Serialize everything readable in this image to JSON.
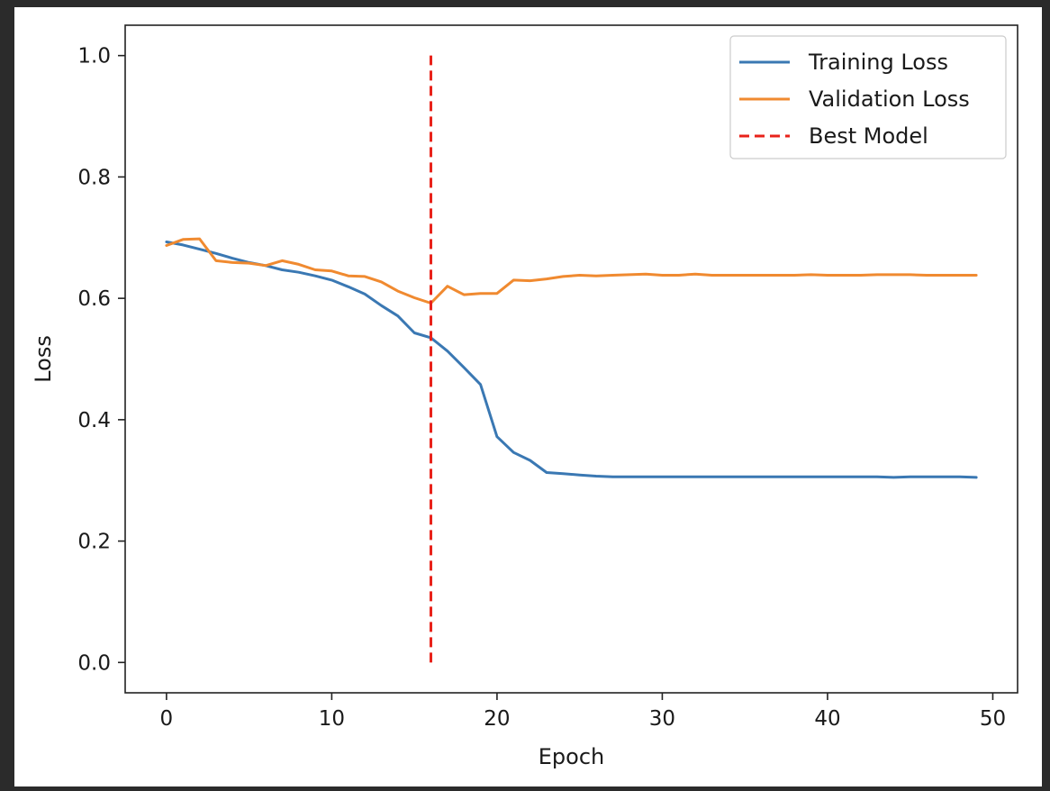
{
  "chart_data": {
    "type": "line",
    "title": "",
    "xlabel": "Epoch",
    "ylabel": "Loss",
    "xlim": [
      -2.5,
      51.5
    ],
    "ylim": [
      -0.05,
      1.05
    ],
    "xticks": [
      0,
      10,
      20,
      30,
      40,
      50
    ],
    "yticks": [
      0.0,
      0.2,
      0.4,
      0.6,
      0.8,
      1.0
    ],
    "xtick_labels": [
      "0",
      "10",
      "20",
      "30",
      "40",
      "50"
    ],
    "ytick_labels": [
      "0.0",
      "0.2",
      "0.4",
      "0.6",
      "0.8",
      "1.0"
    ],
    "grid": false,
    "legend_position": "top-right",
    "x": [
      0,
      1,
      2,
      3,
      4,
      5,
      6,
      7,
      8,
      9,
      10,
      11,
      12,
      13,
      14,
      15,
      16,
      17,
      18,
      19,
      20,
      21,
      22,
      23,
      24,
      25,
      26,
      27,
      28,
      29,
      30,
      31,
      32,
      33,
      34,
      35,
      36,
      37,
      38,
      39,
      40,
      41,
      42,
      43,
      44,
      45,
      46,
      47,
      48,
      49
    ],
    "series": [
      {
        "name": "Training Loss",
        "color": "#3a78b3",
        "style": "solid",
        "values": [
          0.693,
          0.688,
          0.681,
          0.674,
          0.666,
          0.659,
          0.654,
          0.647,
          0.643,
          0.637,
          0.63,
          0.619,
          0.607,
          0.588,
          0.571,
          0.543,
          0.535,
          0.513,
          0.486,
          0.458,
          0.372,
          0.346,
          0.333,
          0.313,
          0.311,
          0.309,
          0.307,
          0.306,
          0.306,
          0.306,
          0.306,
          0.306,
          0.306,
          0.306,
          0.306,
          0.306,
          0.306,
          0.306,
          0.306,
          0.306,
          0.306,
          0.306,
          0.306,
          0.306,
          0.305,
          0.306,
          0.306,
          0.306,
          0.306,
          0.305
        ]
      },
      {
        "name": "Validation Loss",
        "color": "#f08a30",
        "style": "solid",
        "values": [
          0.687,
          0.697,
          0.698,
          0.662,
          0.659,
          0.658,
          0.654,
          0.662,
          0.656,
          0.647,
          0.645,
          0.637,
          0.636,
          0.627,
          0.612,
          0.601,
          0.592,
          0.62,
          0.606,
          0.608,
          0.608,
          0.63,
          0.629,
          0.632,
          0.636,
          0.638,
          0.637,
          0.638,
          0.639,
          0.64,
          0.638,
          0.638,
          0.64,
          0.638,
          0.638,
          0.638,
          0.638,
          0.638,
          0.638,
          0.639,
          0.638,
          0.638,
          0.638,
          0.639,
          0.639,
          0.639,
          0.638,
          0.638,
          0.638,
          0.638
        ]
      }
    ],
    "vlines": [
      {
        "name": "Best Model",
        "x": 16,
        "ymin": 0.0,
        "ymax": 1.0,
        "color": "#e8221a",
        "style": "dashed"
      }
    ],
    "legend": [
      {
        "label": "Training Loss",
        "color": "#3a78b3",
        "style": "solid"
      },
      {
        "label": "Validation Loss",
        "color": "#f08a30",
        "style": "solid"
      },
      {
        "label": "Best Model",
        "color": "#e8221a",
        "style": "dashed"
      }
    ]
  }
}
